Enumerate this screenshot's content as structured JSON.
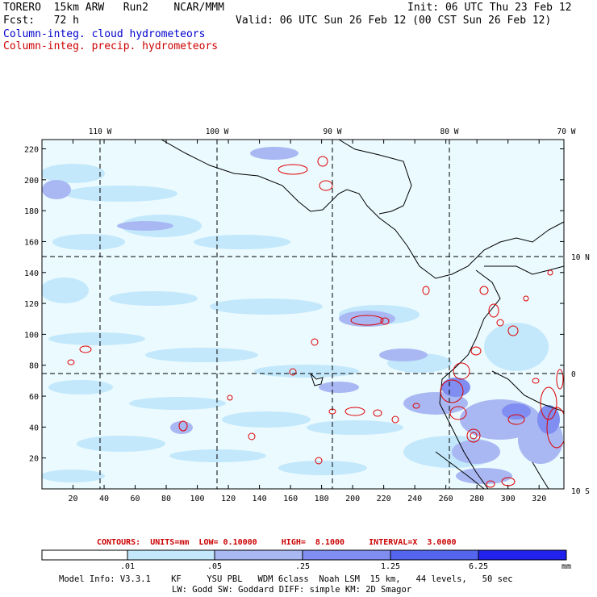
{
  "header": {
    "model": "TORERO  15km ARW   Run2    NCAR/MMM",
    "init": "Init: 06 UTC Thu 23 Feb 12",
    "fcst": "Fcst:   72 h",
    "valid": "Valid: 06 UTC Sun 26 Feb 12 (00 CST Sun 26 Feb 12)",
    "field1": "Column-integ. cloud hydrometeors",
    "field2": "Column-integ. precip. hydrometeors"
  },
  "colors": {
    "field1": "#0000cc",
    "field2": "#cc0000",
    "shade1": "#e6f8ff",
    "shade2": "#c3e8fb",
    "shade3": "#a9b8f3",
    "shade4": "#7f8ef0",
    "shade5": "#5566ee",
    "shade6": "#2222ee",
    "coast": "#000000",
    "grid": "#000000"
  },
  "map": {
    "lon_labels": [
      "110 W",
      "100 W",
      "90 W",
      "80 W",
      "70 W"
    ],
    "lat_labels": [
      "10 N",
      "0",
      "10 S"
    ],
    "x_ticks": [
      "20",
      "40",
      "60",
      "80",
      "100",
      "120",
      "140",
      "160",
      "180",
      "200",
      "220",
      "240",
      "260",
      "280",
      "300",
      "320"
    ],
    "y_ticks": [
      "20",
      "40",
      "60",
      "80",
      "100",
      "120",
      "140",
      "160",
      "180",
      "200",
      "220"
    ]
  },
  "contours": {
    "text": "CONTOURS:  UNITS=mm  LOW= 0.10000     HIGH=  8.1000     INTERVAL=X  3.0000"
  },
  "colorbar": {
    "labels": [
      ".01",
      ".05",
      ".25",
      "1.25",
      "6.25"
    ],
    "units": "mm"
  },
  "footer": {
    "line1": "Model Info: V3.3.1    KF     YSU PBL   WDM 6class  Noah LSM  15 km,   44 levels,   50 sec",
    "line2": "LW: Godd SW: Goddard DIFF: simple KM: 2D Smagor"
  }
}
